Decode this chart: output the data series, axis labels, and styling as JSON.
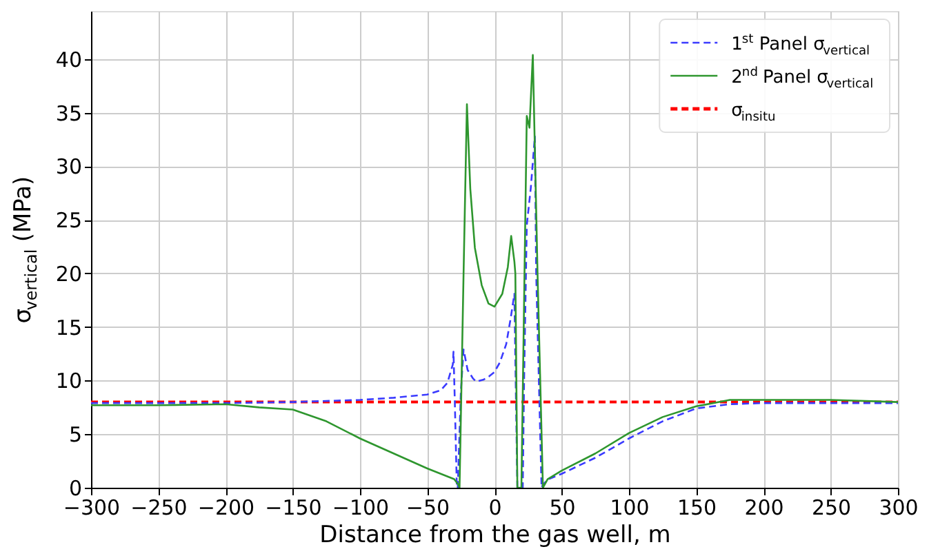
{
  "chart_data": {
    "type": "line",
    "xlabel": "Distance from the gas well, m",
    "ylabel": "σ$_{vertical}$ (MPa)",
    "xlim": [
      -300,
      300
    ],
    "ylim": [
      0,
      44.5
    ],
    "xticks": [
      -300,
      -250,
      -200,
      -150,
      -100,
      -50,
      0,
      50,
      100,
      150,
      200,
      250,
      300
    ],
    "yticks": [
      0,
      5,
      10,
      15,
      20,
      25,
      30,
      35,
      40
    ],
    "grid": true,
    "legend": "top right",
    "marker": "none",
    "series": [
      {
        "name": "1$^{st}$ Panel σ$_{vertical}$",
        "color": "#3a3aff",
        "line_style": "dashed",
        "x": [
          -300,
          -250,
          -200,
          -150,
          -100,
          -75,
          -50,
          -40,
          -35,
          -31,
          -30.5,
          -29.5,
          -28,
          -27.3,
          -25,
          -23,
          -20,
          -16,
          -13.6,
          -8,
          -4,
          0,
          4,
          8.7,
          12,
          14.8,
          15.5,
          17,
          21,
          22,
          24,
          27,
          30,
          31,
          35,
          36,
          40,
          50,
          75,
          100,
          125,
          150,
          175,
          200,
          250,
          300
        ],
        "values": [
          7.9,
          7.9,
          7.9,
          8.0,
          8.2,
          8.4,
          8.7,
          9.1,
          9.8,
          11.5,
          12.7,
          8,
          0,
          0,
          9,
          12.9,
          11,
          10.2,
          9.9,
          10.1,
          10.4,
          10.8,
          11.7,
          13.4,
          15.8,
          18.1,
          12,
          0,
          0,
          10,
          24.5,
          28,
          32.8,
          20,
          0,
          0.3,
          0.8,
          1.3,
          2.8,
          4.6,
          6.2,
          7.4,
          7.8,
          7.9,
          7.9,
          7.9
        ]
      },
      {
        "name": "2$^{nd}$ Panel σ$_{vertical}$",
        "color": "#2e962e",
        "line_style": "solid",
        "x": [
          -300,
          -250,
          -200,
          -175,
          -150,
          -125,
          -100,
          -75,
          -50,
          -30,
          -27,
          -26,
          -23,
          -20.5,
          -18,
          -14.6,
          -9.5,
          -4.5,
          0,
          5.8,
          9.9,
          12.4,
          14.8,
          15.5,
          17,
          20,
          24,
          26,
          28.5,
          32,
          36,
          39.5,
          50,
          75,
          100,
          125,
          150,
          175,
          200,
          250,
          300
        ],
        "values": [
          7.7,
          7.7,
          7.8,
          7.5,
          7.3,
          6.2,
          4.6,
          3.2,
          1.8,
          0.8,
          0.3,
          0,
          20,
          35.8,
          27.9,
          22.4,
          18.9,
          17.2,
          16.9,
          18.1,
          20.6,
          23.5,
          21.1,
          20,
          0,
          0,
          34.7,
          33.6,
          40.4,
          20,
          0,
          0.8,
          1.6,
          3.2,
          5.1,
          6.6,
          7.6,
          8.2,
          8.2,
          8.2,
          8.0
        ]
      }
    ],
    "ref_lines": [
      {
        "axis": "y",
        "value": 8,
        "label": "σ$_{insitu}$",
        "color": "#ff0000",
        "line_style": "dashed"
      }
    ]
  }
}
